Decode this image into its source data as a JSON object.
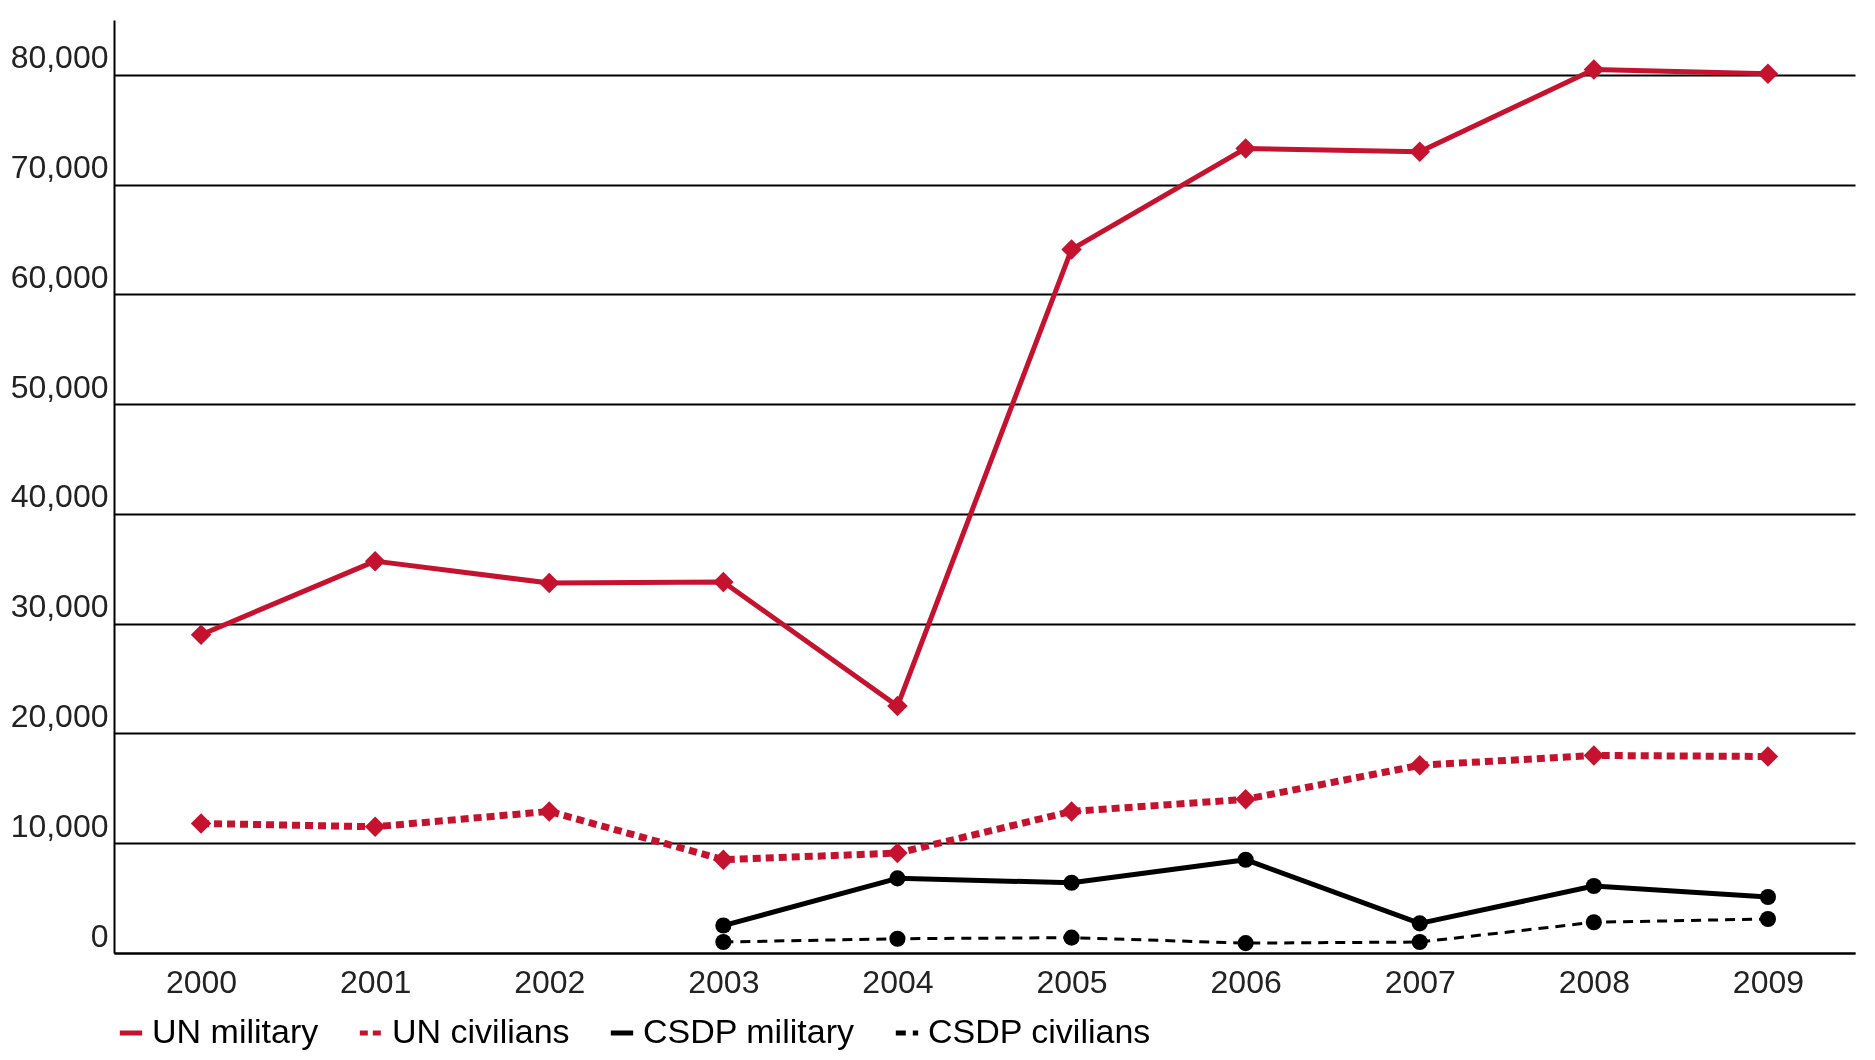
{
  "chart_data": {
    "type": "line",
    "categories": [
      "2000",
      "2001",
      "2002",
      "2003",
      "2004",
      "2005",
      "2006",
      "2007",
      "2008",
      "2009"
    ],
    "ylim": [
      0,
      85000
    ],
    "yticks": [
      0,
      {
        "value": 10000,
        "label": "10,000"
      },
      {
        "value": 20000,
        "label": "20,000"
      },
      {
        "value": 30000,
        "label": "30,000"
      },
      {
        "value": 40000,
        "label": "40,000"
      },
      {
        "value": 50000,
        "label": "50,000"
      },
      {
        "value": 60000,
        "label": "60,000"
      },
      {
        "value": 70000,
        "label": "70,000"
      },
      {
        "value": 80000,
        "label": "80,000"
      }
    ],
    "grid": "y",
    "legend": "bottom",
    "series": [
      {
        "name": "UN military",
        "color": "#c4122f",
        "marker": "diamond",
        "line_style": "solid",
        "values": [
          29000,
          35700,
          33700,
          33800,
          22500,
          64100,
          73300,
          73000,
          80500,
          80100
        ]
      },
      {
        "name": "UN civilians",
        "color": "#c4122f",
        "marker": "diamond",
        "line_style": "dotted",
        "values": [
          11800,
          11500,
          12900,
          8500,
          9100,
          12900,
          14000,
          17100,
          18000,
          17900
        ]
      },
      {
        "name": "CSDP military",
        "color": "#000000",
        "marker": "circle",
        "line_style": "solid",
        "values": [
          null,
          null,
          null,
          2500,
          6800,
          6400,
          8500,
          2700,
          6100,
          5100
        ]
      },
      {
        "name": "CSDP civilians",
        "color": "#000000",
        "marker": "circle",
        "line_style": "dashed",
        "values": [
          null,
          null,
          null,
          1000,
          1300,
          1400,
          900,
          1000,
          2800,
          3100
        ]
      }
    ]
  }
}
